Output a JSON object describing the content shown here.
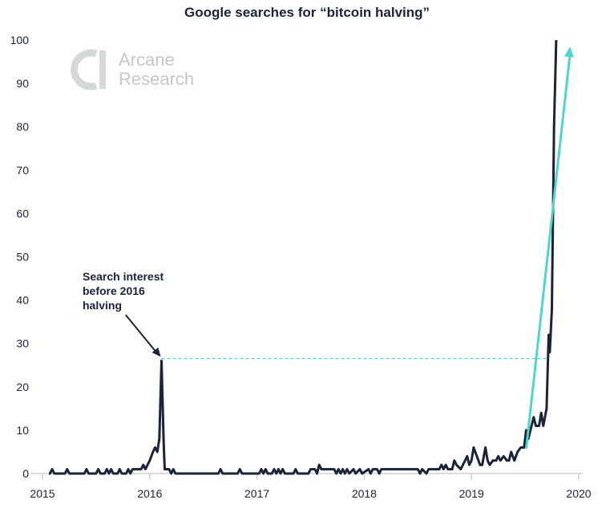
{
  "chart_data": {
    "type": "line",
    "title": "Google searches for “bitcoin halving”",
    "xlabel": "",
    "ylabel": "",
    "xlim": [
      2015,
      2020
    ],
    "ylim": [
      0,
      100
    ],
    "x_ticks": [
      "2015",
      "2016",
      "2017",
      "2018",
      "2019",
      "2020"
    ],
    "y_ticks": [
      "0",
      "10",
      "20",
      "30",
      "40",
      "50",
      "60",
      "70",
      "80",
      "90",
      "100"
    ],
    "grid": false,
    "line_color": "#1b2338",
    "accent_color": "#4fd6cc",
    "series": [
      {
        "points": [
          [
            2015.06,
            0
          ],
          [
            2015.07,
            0
          ],
          [
            2015.09,
            1
          ],
          [
            2015.11,
            0
          ],
          [
            2015.21,
            0
          ],
          [
            2015.23,
            1
          ],
          [
            2015.25,
            0
          ],
          [
            2015.39,
            0
          ],
          [
            2015.41,
            1
          ],
          [
            2015.43,
            0
          ],
          [
            2015.5,
            0
          ],
          [
            2015.52,
            1
          ],
          [
            2015.54,
            0
          ],
          [
            2015.58,
            0
          ],
          [
            2015.6,
            1
          ],
          [
            2015.62,
            0
          ],
          [
            2015.64,
            1
          ],
          [
            2015.66,
            0
          ],
          [
            2015.7,
            0
          ],
          [
            2015.72,
            1
          ],
          [
            2015.74,
            0
          ],
          [
            2015.78,
            0
          ],
          [
            2015.8,
            1
          ],
          [
            2015.82,
            0
          ],
          [
            2015.84,
            1
          ],
          [
            2015.86,
            1
          ],
          [
            2015.92,
            1
          ],
          [
            2015.94,
            2
          ],
          [
            2015.96,
            1
          ],
          [
            2015.98,
            2
          ],
          [
            2016.0,
            3
          ],
          [
            2016.03,
            5
          ],
          [
            2016.05,
            6
          ],
          [
            2016.07,
            5
          ],
          [
            2016.09,
            8
          ],
          [
            2016.11,
            26
          ],
          [
            2016.13,
            7
          ],
          [
            2016.14,
            1
          ],
          [
            2016.18,
            1
          ],
          [
            2016.2,
            0
          ],
          [
            2016.22,
            1
          ],
          [
            2016.24,
            0
          ],
          [
            2016.64,
            0
          ],
          [
            2016.66,
            1
          ],
          [
            2016.68,
            0
          ],
          [
            2016.82,
            0
          ],
          [
            2016.84,
            1
          ],
          [
            2016.86,
            0
          ],
          [
            2017.02,
            0
          ],
          [
            2017.04,
            1
          ],
          [
            2017.06,
            0
          ],
          [
            2017.08,
            1
          ],
          [
            2017.1,
            0
          ],
          [
            2017.14,
            0
          ],
          [
            2017.16,
            1
          ],
          [
            2017.18,
            0
          ],
          [
            2017.2,
            1
          ],
          [
            2017.22,
            0
          ],
          [
            2017.24,
            1
          ],
          [
            2017.26,
            0
          ],
          [
            2017.34,
            0
          ],
          [
            2017.36,
            1
          ],
          [
            2017.38,
            0
          ],
          [
            2017.48,
            0
          ],
          [
            2017.5,
            1
          ],
          [
            2017.54,
            1
          ],
          [
            2017.56,
            0
          ],
          [
            2017.58,
            2
          ],
          [
            2017.6,
            1
          ],
          [
            2017.72,
            1
          ],
          [
            2017.74,
            0
          ],
          [
            2017.76,
            1
          ],
          [
            2017.78,
            0
          ],
          [
            2017.8,
            1
          ],
          [
            2017.82,
            0
          ],
          [
            2017.84,
            1
          ],
          [
            2017.86,
            0
          ],
          [
            2017.9,
            1
          ],
          [
            2017.92,
            0
          ],
          [
            2017.96,
            1
          ],
          [
            2017.98,
            0
          ],
          [
            2018.04,
            1
          ],
          [
            2018.06,
            0
          ],
          [
            2018.08,
            1
          ],
          [
            2018.12,
            1
          ],
          [
            2018.14,
            0
          ],
          [
            2018.16,
            1
          ],
          [
            2018.5,
            1
          ],
          [
            2018.52,
            0
          ],
          [
            2018.54,
            1
          ],
          [
            2018.58,
            0
          ],
          [
            2018.6,
            1
          ],
          [
            2018.7,
            1
          ],
          [
            2018.72,
            2
          ],
          [
            2018.74,
            1
          ],
          [
            2018.76,
            2
          ],
          [
            2018.78,
            1
          ],
          [
            2018.82,
            1
          ],
          [
            2018.84,
            3
          ],
          [
            2018.86,
            2
          ],
          [
            2018.9,
            1
          ],
          [
            2018.94,
            3
          ],
          [
            2018.96,
            4
          ],
          [
            2018.98,
            2
          ],
          [
            2019.0,
            3
          ],
          [
            2019.02,
            6
          ],
          [
            2019.05,
            4
          ],
          [
            2019.08,
            2
          ],
          [
            2019.1,
            2
          ],
          [
            2019.13,
            6
          ],
          [
            2019.15,
            3
          ],
          [
            2019.17,
            2
          ],
          [
            2019.2,
            3
          ],
          [
            2019.23,
            3
          ],
          [
            2019.25,
            4
          ],
          [
            2019.27,
            3
          ],
          [
            2019.3,
            4
          ],
          [
            2019.33,
            3
          ],
          [
            2019.35,
            3
          ],
          [
            2019.37,
            5
          ],
          [
            2019.4,
            3
          ],
          [
            2019.43,
            5
          ],
          [
            2019.46,
            6
          ],
          [
            2019.49,
            6
          ],
          [
            2019.51,
            10
          ],
          [
            2019.53,
            8
          ],
          [
            2019.56,
            11
          ],
          [
            2019.58,
            13
          ],
          [
            2019.6,
            11
          ],
          [
            2019.63,
            11
          ],
          [
            2019.65,
            14
          ],
          [
            2019.67,
            11
          ],
          [
            2019.7,
            15
          ],
          [
            2019.72,
            32
          ],
          [
            2019.73,
            28
          ],
          [
            2019.75,
            38
          ],
          [
            2019.77,
            80
          ],
          [
            2019.79,
            100
          ]
        ]
      }
    ],
    "annotations": [
      {
        "text_lines": [
          "Search interest",
          "before 2016",
          "halving"
        ],
        "arrow_from": [
          2016.0,
          37.5
        ],
        "arrow_to": [
          2016.11,
          27.5
        ]
      }
    ],
    "reference_line": {
      "y": 26.5,
      "x_from": 2016.11,
      "x_to": 2019.72,
      "style": "dashed"
    },
    "trend_arrow": {
      "from": [
        2019.51,
        5.7
      ],
      "to": [
        2019.92,
        98.5
      ]
    }
  },
  "logo": {
    "line1": "Arcane",
    "line2": "Research"
  }
}
